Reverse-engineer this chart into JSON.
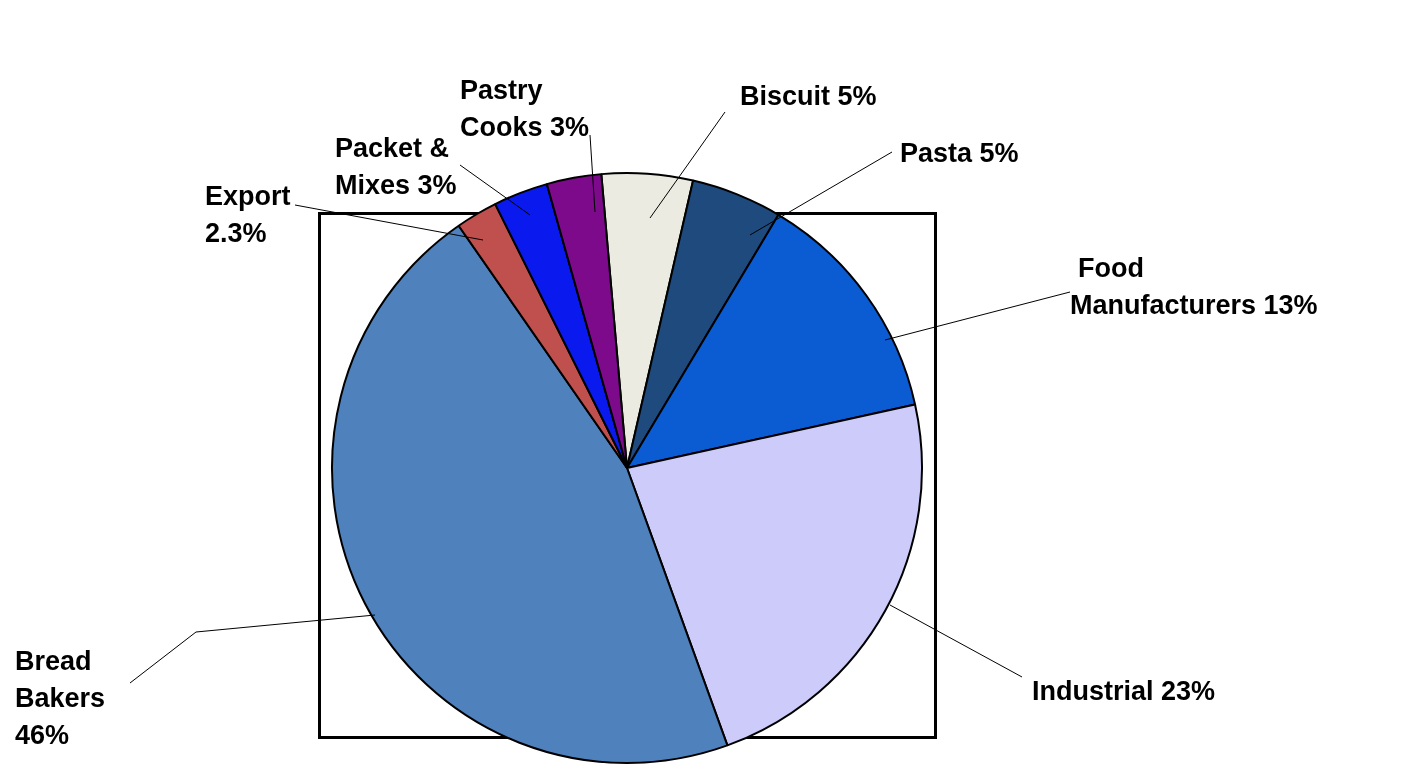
{
  "chart_data": {
    "type": "pie",
    "categories": [
      "Biscuit",
      "Pasta",
      "Food Manufacturers",
      "Industrial",
      "Bread Bakers",
      "Export",
      "Packet & Mixes",
      "Pastry Cooks"
    ],
    "values": [
      5,
      5,
      13,
      23,
      46,
      2.3,
      3,
      3
    ],
    "value_labels": [
      "5%",
      "5%",
      "13%",
      "23%",
      "46%",
      "2.3%",
      "3%",
      "3%"
    ],
    "colors": [
      "#ecebe1",
      "#1f4a7e",
      "#0b5bd3",
      "#cccbfa",
      "#4f81bd",
      "#c0504d",
      "#0a1aef",
      "#7d0a8a"
    ],
    "legend": false
  }
}
